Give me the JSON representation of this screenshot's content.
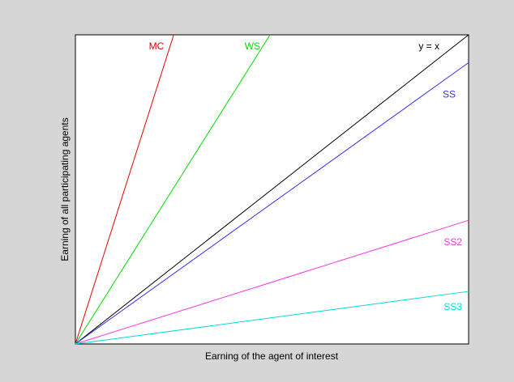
{
  "chart_data": {
    "type": "line",
    "title": "",
    "xlabel": "Earning of the agent of interest",
    "ylabel": "Earning of all participating agents",
    "xlim": [
      0,
      1
    ],
    "ylim": [
      0,
      1
    ],
    "grid": false,
    "ticks": false,
    "series": [
      {
        "name": "MC",
        "color": "#e60000",
        "x": [
          0,
          0.25
        ],
        "y": [
          0,
          1.0
        ]
      },
      {
        "name": "WS",
        "color": "#00dd00",
        "x": [
          0,
          0.495
        ],
        "y": [
          0,
          1.0
        ]
      },
      {
        "name": "y = x",
        "color": "#000000",
        "x": [
          0,
          1.0
        ],
        "y": [
          0,
          1.0
        ]
      },
      {
        "name": "SS",
        "color": "#3333ee",
        "x": [
          0,
          1.0
        ],
        "y": [
          0,
          0.91
        ]
      },
      {
        "name": "SS2",
        "color": "#ff33dd",
        "x": [
          0,
          1.0
        ],
        "y": [
          0,
          0.4
        ]
      },
      {
        "name": "SS3",
        "color": "#00dddd",
        "x": [
          0,
          1.0
        ],
        "y": [
          0,
          0.17
        ]
      }
    ]
  }
}
